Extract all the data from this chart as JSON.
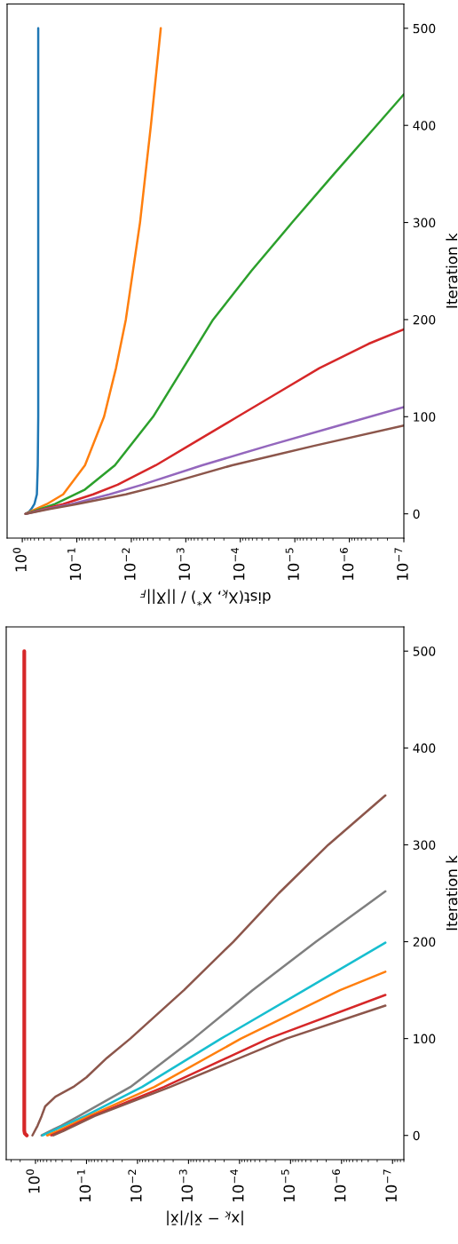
{
  "chart_data": [
    {
      "type": "line",
      "xlabel": "dist(X$_{k}$, X$^{*}$) / ||X̄||$_{F}$",
      "ylabel": "Iteration k",
      "log": "x",
      "xlim": [
        1.9,
        1e-07
      ],
      "xticks": [
        {
          "value": 1,
          "label": "10$^{0}$"
        },
        {
          "value": 0.1,
          "label": "10$^{−1}$"
        },
        {
          "value": 0.01,
          "label": "10$^{−2}$"
        },
        {
          "value": 0.001,
          "label": "10$^{−3}$"
        },
        {
          "value": 0.0001,
          "label": "10$^{−4}$"
        },
        {
          "value": 1e-05,
          "label": "10$^{−5}$"
        },
        {
          "value": 1e-06,
          "label": "10$^{−6}$"
        },
        {
          "value": 1e-07,
          "label": "10$^{−7}$"
        }
      ],
      "ylim": [
        -25,
        525
      ],
      "yticks": [
        0,
        100,
        200,
        300,
        400,
        500
      ],
      "series": [
        {
          "color": "#1f77b4",
          "x": [
            0.87,
            0.76,
            0.68,
            0.6,
            0.54,
            0.52,
            0.51,
            0.51,
            0.51,
            0.51,
            0.51
          ],
          "values": [
            0,
            2,
            5,
            10,
            20,
            50,
            100,
            200,
            300,
            400,
            500
          ]
        },
        {
          "color": "#ff7f0e",
          "x": [
            0.87,
            0.355,
            0.178,
            0.0708,
            0.0316,
            0.0191,
            0.0126,
            0.00692,
            0.00437,
            0.00288
          ],
          "values": [
            0,
            10,
            20,
            50,
            100,
            150,
            200,
            300,
            400,
            500
          ]
        },
        {
          "color": "#2ca02c",
          "x": [
            0.87,
            0.251,
            0.0708,
            0.02,
            0.00398,
            0.00112,
            0.000316,
            6.31e-05,
            1.12e-05,
            1.91e-06,
            3.16e-07,
            1e-07
          ],
          "values": [
            0,
            10,
            25,
            50,
            100,
            150,
            200,
            250,
            300,
            350,
            400,
            432
          ]
        },
        {
          "color": "#d62728",
          "x": [
            0.87,
            0.398,
            0.178,
            0.0501,
            0.0178,
            0.00355,
            0.000631,
            0.000112,
            2e-05,
            3.55e-06,
            4.47e-07,
            1e-07
          ],
          "values": [
            0,
            5,
            10,
            20,
            30,
            50,
            75,
            100,
            125,
            150,
            175,
            190
          ]
        },
        {
          "color": "#9467bd",
          "x": [
            0.87,
            0.355,
            0.126,
            0.0251,
            0.00631,
            0.000501,
            3.16e-05,
            1.78e-06,
            1e-07
          ],
          "values": [
            0,
            5,
            10,
            20,
            30,
            50,
            70,
            90,
            110
          ]
        },
        {
          "color": "#8c564b",
          "x": [
            0.87,
            0.316,
            0.1,
            0.0126,
            0.00251,
            0.000141,
            4.47e-06,
            1e-07
          ],
          "values": [
            0,
            5,
            10,
            20,
            30,
            50,
            70,
            91
          ]
        }
      ]
    },
    {
      "type": "line",
      "xlabel": "|x$_{k}$ − x̄|/|x̄|",
      "ylabel": "Iteration k",
      "log": "x",
      "xlim": [
        3.75,
        6e-08
      ],
      "xticks": [
        {
          "value": 1,
          "label": "10$^{0}$"
        },
        {
          "value": 0.1,
          "label": "10$^{−1}$"
        },
        {
          "value": 0.01,
          "label": "10$^{−2}$"
        },
        {
          "value": 0.001,
          "label": "10$^{−3}$"
        },
        {
          "value": 0.0001,
          "label": "10$^{−4}$"
        },
        {
          "value": 1e-05,
          "label": "10$^{−5}$"
        },
        {
          "value": 1e-06,
          "label": "10$^{−6}$"
        },
        {
          "value": 1e-07,
          "label": "10$^{−7}$"
        }
      ],
      "ylim": [
        -25,
        525
      ],
      "yticks": [
        0,
        100,
        200,
        300,
        400,
        500
      ],
      "series": [
        {
          "color": "#8c564b",
          "x": [
            1.15,
            0.912,
            0.759,
            0.646,
            0.407,
            0.182,
            0.1,
            0.0398,
            0.0138,
            0.00123,
            0.000132,
            1.7e-05,
            1.82e-06,
            1.38e-07
          ],
          "values": [
            0,
            10,
            20,
            30,
            40,
            50,
            60,
            80,
            100,
            150,
            200,
            250,
            300,
            351
          ]
        },
        {
          "color": "#7f7f7f",
          "x": [
            0.759,
            0.5,
            0.316,
            0.141,
            0.0138,
            0.000794,
            5.5e-05,
            3.16e-06,
            1.38e-07
          ],
          "values": [
            0,
            5,
            10,
            20,
            50,
            100,
            150,
            200,
            252
          ]
        },
        {
          "color": "#17becf",
          "x": [
            0.724,
            0.447,
            0.282,
            0.107,
            0.00813,
            0.000229,
            5.37e-06,
            1.38e-07
          ],
          "values": [
            0,
            5,
            10,
            20,
            50,
            100,
            150,
            199
          ]
        },
        {
          "color": "#ff7f0e",
          "x": [
            0.589,
            0.355,
            0.224,
            0.0891,
            0.00468,
            9.33e-05,
            1.07e-06,
            1.38e-07
          ],
          "values": [
            0,
            5,
            10,
            20,
            50,
            100,
            150,
            169
          ]
        },
        {
          "color": "#d62728",
          "x": [
            0.49,
            0.302,
            0.191,
            0.0759,
            0.00302,
            2.69e-05,
            1.38e-07
          ],
          "values": [
            0,
            5,
            10,
            20,
            50,
            100,
            145
          ]
        },
        {
          "color": "#8c564b",
          "x": [
            0.447,
            0.275,
            0.174,
            0.0692,
            0.00229,
            1.2e-05,
            1.38e-07
          ],
          "values": [
            0,
            5,
            10,
            20,
            50,
            100,
            134
          ]
        },
        {
          "color": "#d62728",
          "x": [
            1.48,
            1.62,
            1.66,
            1.66,
            1.66,
            1.66,
            1.66,
            1.66,
            1.66,
            1.66
          ],
          "values": [
            0,
            2,
            5,
            10,
            50,
            100,
            200,
            300,
            400,
            500
          ]
        }
      ]
    }
  ]
}
